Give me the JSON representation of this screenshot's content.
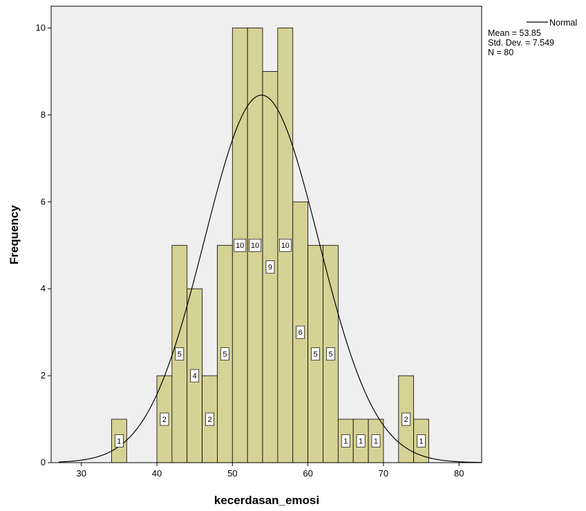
{
  "chart_data": {
    "type": "bar",
    "xlabel": "kecerdasan_emosi",
    "ylabel": "Frequency",
    "xlim": [
      26,
      83
    ],
    "ylim": [
      0,
      10.5
    ],
    "xticks": [
      30,
      40,
      50,
      60,
      70,
      80
    ],
    "yticks": [
      0,
      2,
      4,
      6,
      8,
      10
    ],
    "bin_width": 2,
    "bins": [
      {
        "start": 34,
        "count": 1,
        "label": "1"
      },
      {
        "start": 40,
        "count": 2,
        "label": "2"
      },
      {
        "start": 42,
        "count": 5,
        "label": "5"
      },
      {
        "start": 44,
        "count": 4,
        "label": "4"
      },
      {
        "start": 46,
        "count": 2,
        "label": "2"
      },
      {
        "start": 48,
        "count": 5,
        "label": "5"
      },
      {
        "start": 50,
        "count": 10,
        "label": "10"
      },
      {
        "start": 52,
        "count": 10,
        "label": "10"
      },
      {
        "start": 54,
        "count": 9,
        "label": "9"
      },
      {
        "start": 56,
        "count": 10,
        "label": "10"
      },
      {
        "start": 58,
        "count": 6,
        "label": "6"
      },
      {
        "start": 60,
        "count": 5,
        "label": "5"
      },
      {
        "start": 62,
        "count": 5,
        "label": "5"
      },
      {
        "start": 64,
        "count": 1,
        "label": "1"
      },
      {
        "start": 66,
        "count": 1,
        "label": "1"
      },
      {
        "start": 68,
        "count": 1,
        "label": "1"
      },
      {
        "start": 72,
        "count": 2,
        "label": "2"
      },
      {
        "start": 74,
        "count": 1,
        "label": "1"
      }
    ],
    "normal_curve": {
      "mean": 53.85,
      "sd": 7.549,
      "n": 80
    },
    "legend": {
      "position": "top-right",
      "series_name": "Normal",
      "mean_text": "Mean = 53.85",
      "sd_text": "Std. Dev. = 7.549",
      "n_text": "N = 80"
    },
    "colors": {
      "plot_bg": "#efefef",
      "bar_fill": "#d5d295",
      "bar_stroke": "#000000",
      "curve": "#000000"
    }
  }
}
